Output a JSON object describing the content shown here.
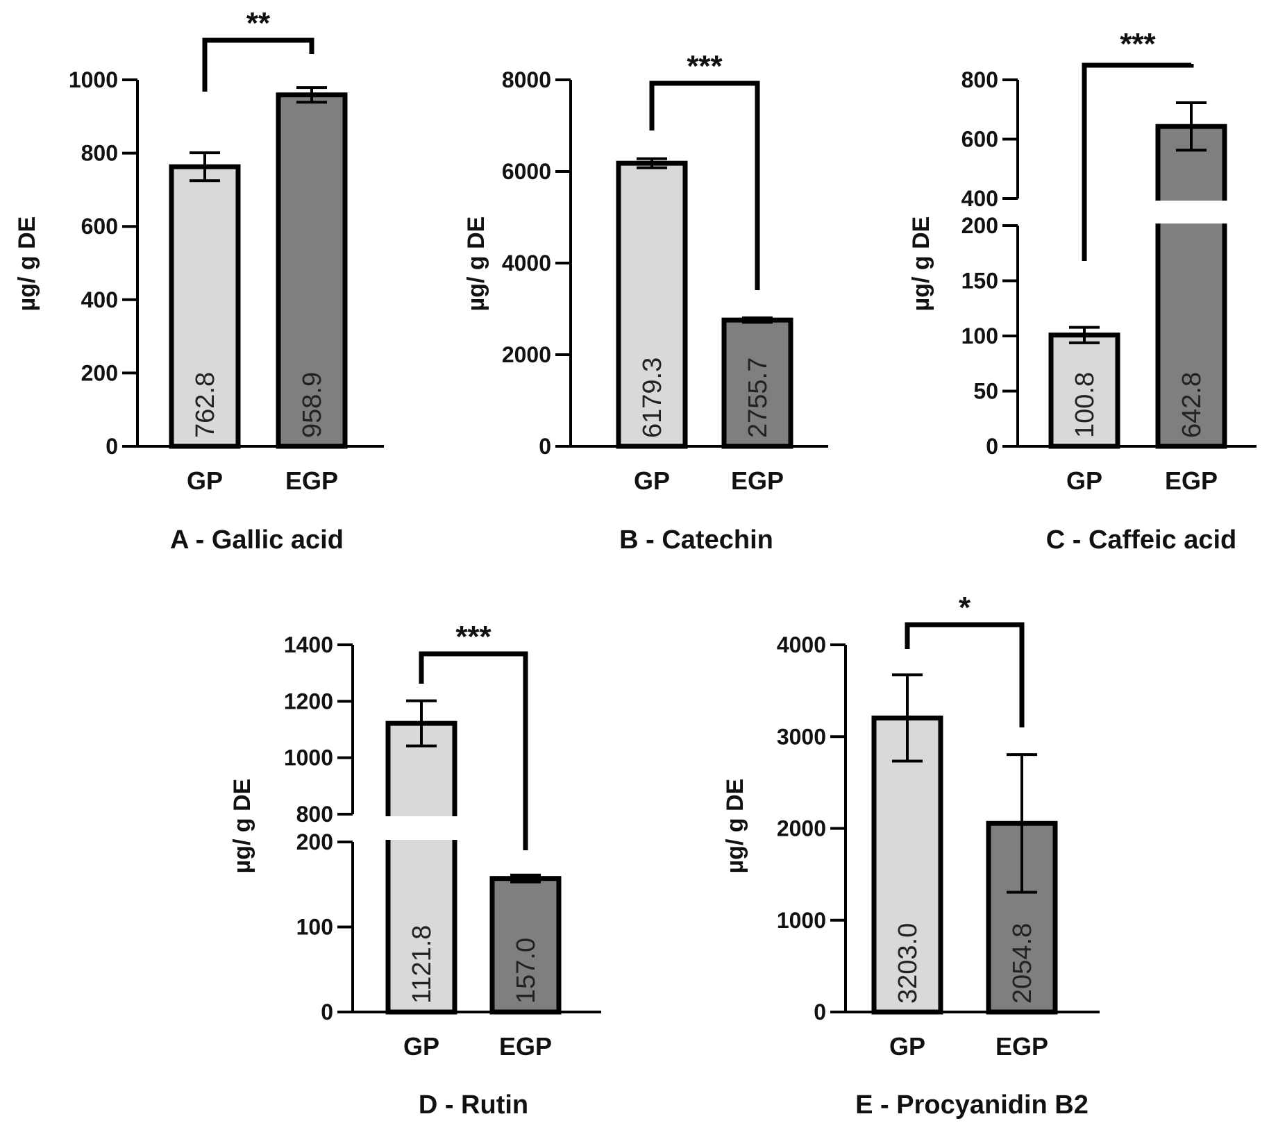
{
  "chart_data": [
    {
      "type": "bar",
      "title": "A - Gallic acid",
      "ylabel": "µg/ g DE",
      "categories": [
        "GP",
        "EGP"
      ],
      "values": [
        762.8,
        958.9
      ],
      "value_labels": [
        "762.8",
        "958.9"
      ],
      "error": [
        38,
        20
      ],
      "ylim": [
        0,
        1000
      ],
      "yticks": [
        0,
        200,
        400,
        600,
        800,
        1000
      ],
      "significance": "**",
      "bar_colors": [
        "#d9d9d9",
        "#7f7f7f"
      ]
    },
    {
      "type": "bar",
      "title": "B - Catechin",
      "ylabel": "µg/ g DE",
      "categories": [
        "GP",
        "EGP"
      ],
      "values": [
        6179.3,
        2755.7
      ],
      "value_labels": [
        "6179.3",
        "2755.7"
      ],
      "error": [
        100,
        50
      ],
      "ylim": [
        0,
        8000
      ],
      "yticks": [
        0,
        2000,
        4000,
        6000,
        8000
      ],
      "significance": "***",
      "bar_colors": [
        "#d9d9d9",
        "#7f7f7f"
      ]
    },
    {
      "type": "bar",
      "title": "C - Caffeic acid",
      "ylabel": "µg/ g DE",
      "categories": [
        "GP",
        "EGP"
      ],
      "values": [
        100.8,
        642.8
      ],
      "value_labels": [
        "100.8",
        "642.8"
      ],
      "error": [
        7,
        80
      ],
      "axis_break": {
        "lower": [
          0,
          200
        ],
        "upper": [
          400,
          800
        ]
      },
      "yticks_lower": [
        0,
        50,
        100,
        150,
        200
      ],
      "yticks_upper": [
        400,
        600,
        800
      ],
      "significance": "***",
      "bar_colors": [
        "#d9d9d9",
        "#7f7f7f"
      ]
    },
    {
      "type": "bar",
      "title": "D - Rutin",
      "ylabel": "µg/ g DE",
      "categories": [
        "GP",
        "EGP"
      ],
      "values": [
        1121.8,
        157.0
      ],
      "value_labels": [
        "1121.8",
        "157.0"
      ],
      "error": [
        80,
        4
      ],
      "axis_break": {
        "lower": [
          0,
          200
        ],
        "upper": [
          800,
          1400
        ]
      },
      "yticks_lower": [
        0,
        100,
        200
      ],
      "yticks_upper": [
        800,
        1000,
        1200,
        1400
      ],
      "significance": "***",
      "bar_colors": [
        "#d9d9d9",
        "#7f7f7f"
      ]
    },
    {
      "type": "bar",
      "title": "E - Procyanidin B2",
      "ylabel": "µg/ g DE",
      "categories": [
        "GP",
        "EGP"
      ],
      "values": [
        3203.0,
        2054.8
      ],
      "value_labels": [
        "3203.0",
        "2054.8"
      ],
      "error": [
        470,
        750
      ],
      "ylim": [
        0,
        4000
      ],
      "yticks": [
        0,
        1000,
        2000,
        3000,
        4000
      ],
      "significance": "*",
      "bar_colors": [
        "#d9d9d9",
        "#7f7f7f"
      ]
    }
  ]
}
